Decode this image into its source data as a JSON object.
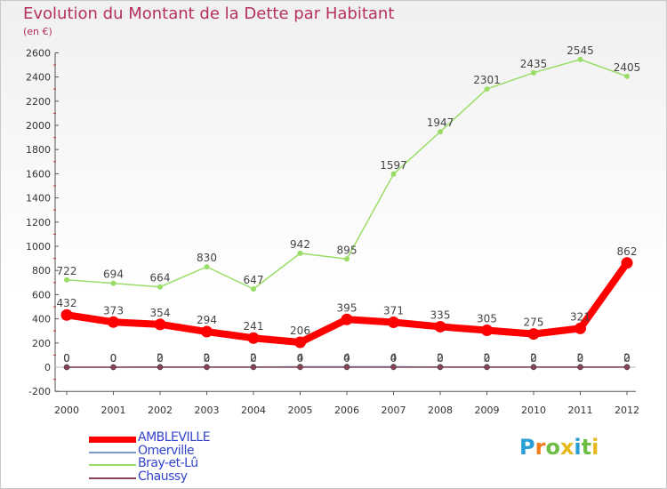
{
  "chart_data": {
    "type": "line",
    "title": "Evolution du Montant de la Dette par Habitant",
    "subtitle": "(en €)",
    "categories": [
      "2000",
      "2001",
      "2002",
      "2003",
      "2004",
      "2005",
      "2006",
      "2007",
      "2008",
      "2009",
      "2010",
      "2011",
      "2012"
    ],
    "ylim": [
      -200,
      2600
    ],
    "yticks": [
      -200,
      0,
      200,
      400,
      600,
      800,
      1000,
      1200,
      1400,
      1600,
      1800,
      2000,
      2200,
      2400,
      2600
    ],
    "grid": false,
    "legend_position": "bottom-left",
    "series": [
      {
        "name": "AMBLEVILLE",
        "color": "#ff0000",
        "values": [
          432,
          373,
          354,
          294,
          241,
          206,
          395,
          371,
          335,
          305,
          275,
          321,
          862
        ],
        "labels": [
          "432",
          "373",
          "354",
          "294",
          "241",
          "206",
          "395",
          "371",
          "335",
          "305",
          "275",
          "321",
          "862"
        ]
      },
      {
        "name": "Omerville",
        "color": "#7799cc",
        "values": [
          0,
          0,
          2,
          2,
          2,
          4,
          4,
          4,
          2,
          2,
          2,
          2,
          2
        ],
        "labels": [
          "0",
          "0",
          "2",
          "2",
          "2",
          "4",
          "4",
          "4",
          "2",
          "2",
          "2",
          "2",
          "2"
        ]
      },
      {
        "name": "Bray-et-Lû",
        "color": "#99dd66",
        "values": [
          722,
          694,
          664,
          830,
          647,
          942,
          895,
          1597,
          1947,
          2301,
          2435,
          2545,
          2405
        ],
        "labels": [
          "722",
          "694",
          "664",
          "830",
          "647",
          "942",
          "895",
          "1597",
          "1947",
          "2301",
          "2435",
          "2545",
          "2405"
        ]
      },
      {
        "name": "Chaussy",
        "color": "#884455",
        "values": [
          0,
          0,
          0,
          0,
          0,
          0,
          0,
          0,
          0,
          0,
          0,
          0,
          0
        ],
        "labels": [
          "0",
          "0",
          "0",
          "0",
          "0",
          "0",
          "0",
          "0",
          "0",
          "0",
          "0",
          "0",
          "0"
        ]
      }
    ]
  },
  "brand": {
    "letters": [
      "P",
      "r",
      "o",
      "x",
      "i",
      "t",
      "i"
    ],
    "colors": [
      "#2a9fd6",
      "#f07c1e",
      "#6cbe45",
      "#e6b81c",
      "#2a9fd6",
      "#6cbe45",
      "#e6b81c"
    ]
  }
}
